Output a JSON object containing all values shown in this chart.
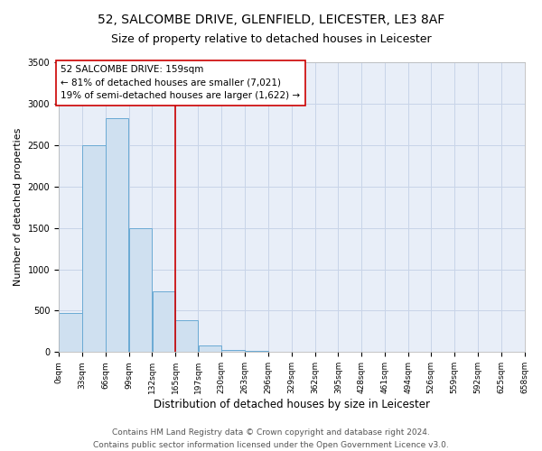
{
  "title": "52, SALCOMBE DRIVE, GLENFIELD, LEICESTER, LE3 8AF",
  "subtitle": "Size of property relative to detached houses in Leicester",
  "xlabel": "Distribution of detached houses by size in Leicester",
  "ylabel": "Number of detached properties",
  "bar_values": [
    470,
    2500,
    2820,
    1500,
    730,
    380,
    80,
    30,
    10,
    5,
    2,
    1,
    0,
    0,
    0,
    0,
    0,
    0,
    0,
    0
  ],
  "bar_left_edges": [
    0,
    33,
    66,
    99,
    132,
    165,
    197,
    230,
    263,
    296,
    329,
    362,
    395,
    428,
    461,
    494,
    526,
    559,
    592,
    625
  ],
  "bar_widths": [
    33,
    33,
    33,
    33,
    33,
    32,
    33,
    33,
    33,
    33,
    33,
    33,
    33,
    33,
    33,
    32,
    33,
    33,
    33,
    33
  ],
  "xtick_labels": [
    "0sqm",
    "33sqm",
    "66sqm",
    "99sqm",
    "132sqm",
    "165sqm",
    "197sqm",
    "230sqm",
    "263sqm",
    "296sqm",
    "329sqm",
    "362sqm",
    "395sqm",
    "428sqm",
    "461sqm",
    "494sqm",
    "526sqm",
    "559sqm",
    "592sqm",
    "625sqm",
    "658sqm"
  ],
  "xtick_positions": [
    0,
    33,
    66,
    99,
    132,
    165,
    197,
    230,
    263,
    296,
    329,
    362,
    395,
    428,
    461,
    494,
    526,
    559,
    592,
    625,
    658
  ],
  "ylim": [
    0,
    3500
  ],
  "xlim": [
    0,
    658
  ],
  "bar_facecolor": "#cfe0f0",
  "bar_edgecolor": "#6aaad4",
  "grid_color": "#c8d4e8",
  "bg_color": "#e8eef8",
  "vline_x": 165,
  "vline_color": "#cc0000",
  "annotation_text": "52 SALCOMBE DRIVE: 159sqm\n← 81% of detached houses are smaller (7,021)\n19% of semi-detached houses are larger (1,622) →",
  "annotation_box_color": "#cc0000",
  "footer_line1": "Contains HM Land Registry data © Crown copyright and database right 2024.",
  "footer_line2": "Contains public sector information licensed under the Open Government Licence v3.0.",
  "title_fontsize": 10,
  "subtitle_fontsize": 9,
  "xlabel_fontsize": 8.5,
  "ylabel_fontsize": 8,
  "tick_fontsize": 6.5,
  "annotation_fontsize": 7.5,
  "footer_fontsize": 6.5
}
